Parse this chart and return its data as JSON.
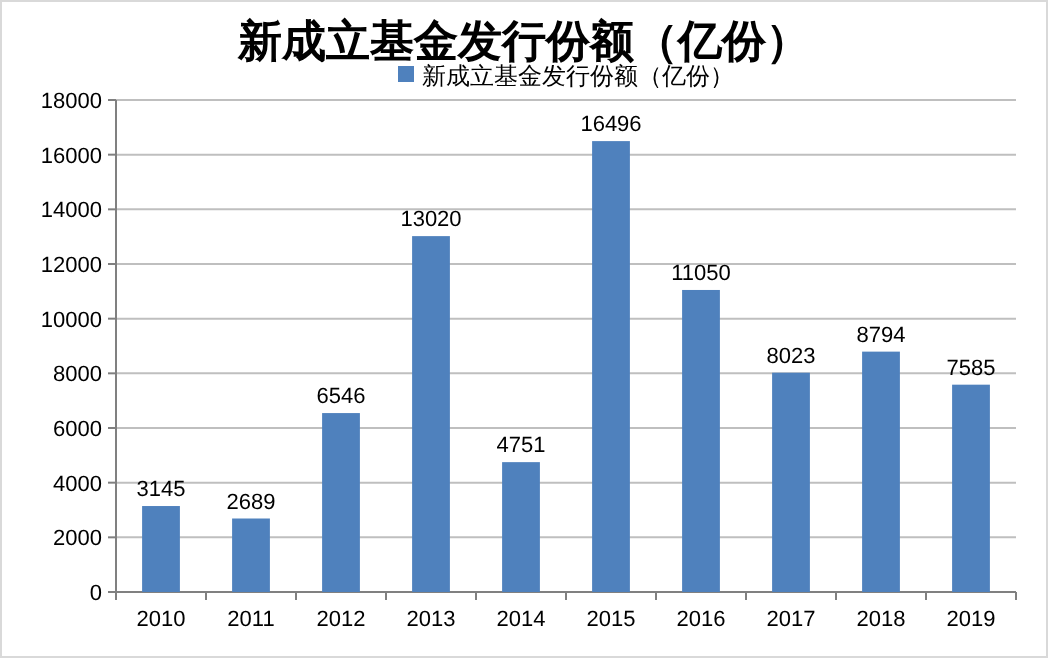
{
  "chart_data": {
    "type": "bar",
    "title": "新成立基金发行份额（亿份）",
    "categories": [
      "2010",
      "2011",
      "2012",
      "2013",
      "2014",
      "2015",
      "2016",
      "2017",
      "2018",
      "2019"
    ],
    "series": [
      {
        "name": "新成立基金发行份额（亿份）",
        "color": "#4f81bd",
        "values": [
          3145,
          2689,
          6546,
          13020,
          4751,
          16496,
          11050,
          8023,
          8794,
          7585
        ]
      }
    ],
    "ylim": [
      0,
      18000
    ],
    "yticks": [
      0,
      2000,
      4000,
      6000,
      8000,
      10000,
      12000,
      14000,
      16000,
      18000
    ],
    "grid": "y",
    "legend": "top",
    "data_labels": true
  }
}
